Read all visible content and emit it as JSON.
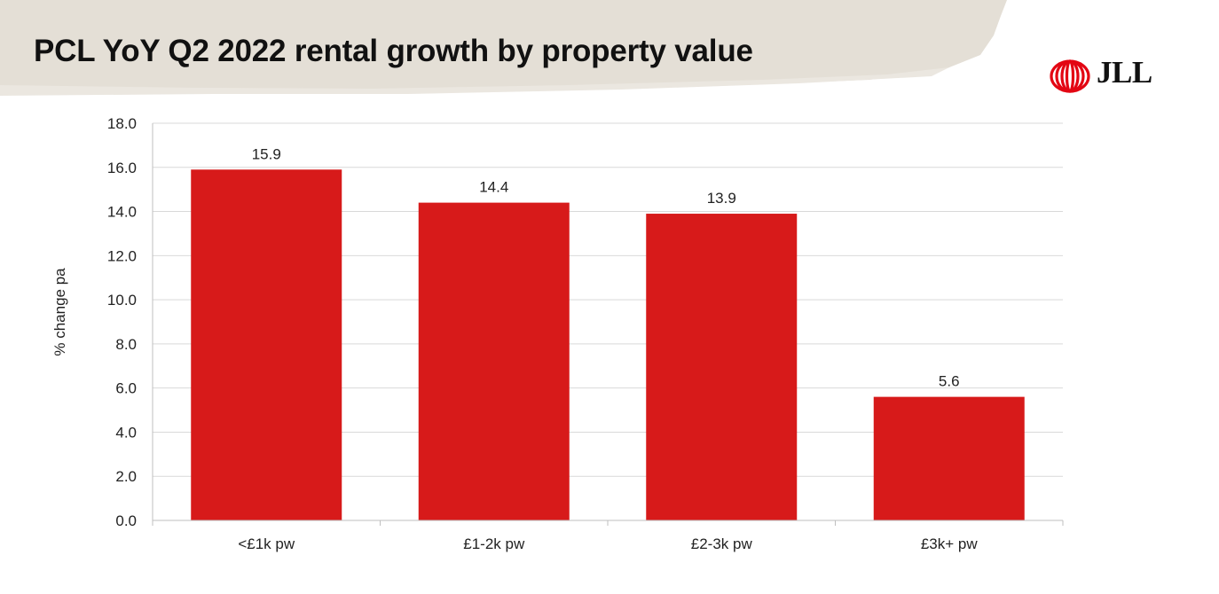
{
  "header": {
    "title": "PCL YoY Q2 2022 rental growth by property value",
    "logo_text": "JLL"
  },
  "colors": {
    "bar": "#d71a1a",
    "logo": "#e30613",
    "banner": "#e4dfd6",
    "grid": "#d9d9d9",
    "axis": "#bfbfbf"
  },
  "chart_data": {
    "type": "bar",
    "title": "PCL YoY Q2 2022 rental growth by property value",
    "xlabel": "",
    "ylabel": "% change pa",
    "categories": [
      "<£1k pw",
      "£1-2k pw",
      "£2-3k pw",
      "£3k+ pw"
    ],
    "values": [
      15.9,
      14.4,
      13.9,
      5.6
    ],
    "value_labels": [
      "15.9",
      "14.4",
      "13.9",
      "5.6"
    ],
    "ylim": [
      0,
      18
    ],
    "yticks": [
      "0.0",
      "2.0",
      "4.0",
      "6.0",
      "8.0",
      "10.0",
      "12.0",
      "14.0",
      "16.0",
      "18.0"
    ],
    "grid": true,
    "legend": "none"
  }
}
